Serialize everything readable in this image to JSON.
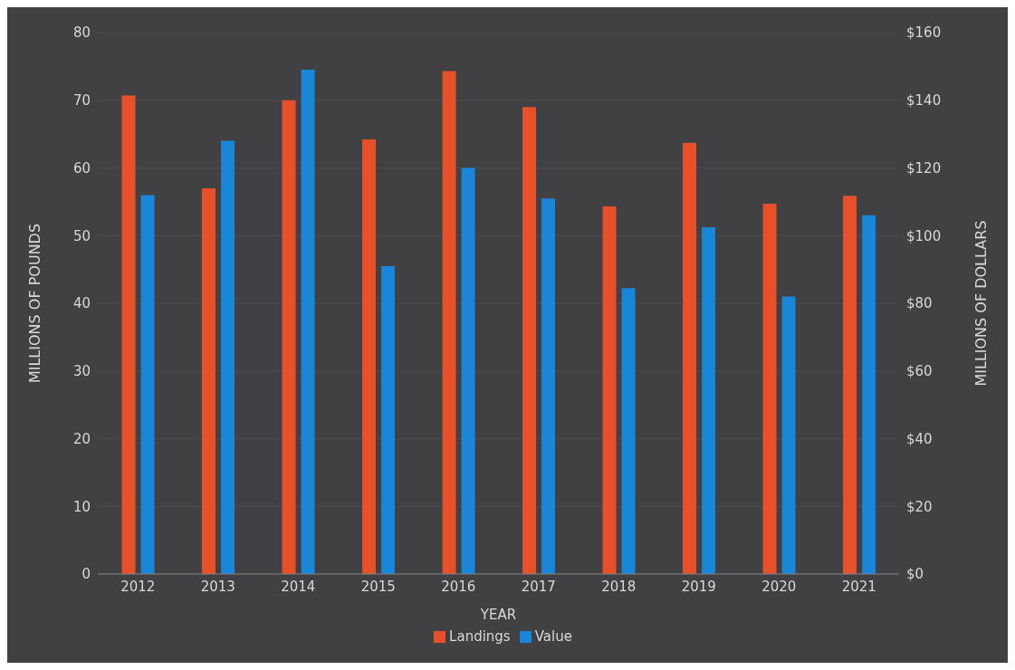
{
  "chart_data": {
    "type": "bar",
    "xlabel": "YEAR",
    "ylabel": "MILLIONS OF POUNDS",
    "y2label": "MILLIONS OF DOLLARS",
    "categories": [
      "2012",
      "2013",
      "2014",
      "2015",
      "2016",
      "2017",
      "2018",
      "2019",
      "2020",
      "2021"
    ],
    "series": [
      {
        "name": "Landings",
        "color": "#e8502a",
        "values": [
          70.7,
          57.0,
          70.0,
          64.2,
          74.3,
          69.0,
          54.3,
          63.7,
          54.7,
          55.9
        ]
      },
      {
        "name": "Value",
        "color": "#1a86d8",
        "axis": "y2",
        "values": [
          112,
          128,
          149,
          91,
          120,
          111,
          84.5,
          102.5,
          82,
          106
        ]
      }
    ],
    "ylim": [
      0,
      80
    ],
    "yticks": [
      0,
      10,
      20,
      30,
      40,
      50,
      60,
      70,
      80
    ],
    "y2lim": [
      0,
      160
    ],
    "y2ticks": [
      {
        "value": 0,
        "label": "$0"
      },
      {
        "value": 20,
        "label": "$20"
      },
      {
        "value": 40,
        "label": "$40"
      },
      {
        "value": 60,
        "label": "$60"
      },
      {
        "value": 80,
        "label": "$80"
      },
      {
        "value": 100,
        "label": "$100"
      },
      {
        "value": 120,
        "label": "$120"
      },
      {
        "value": 140,
        "label": "$140"
      },
      {
        "value": 160,
        "label": "$160"
      }
    ],
    "grid": "y",
    "legend": "bottom"
  }
}
